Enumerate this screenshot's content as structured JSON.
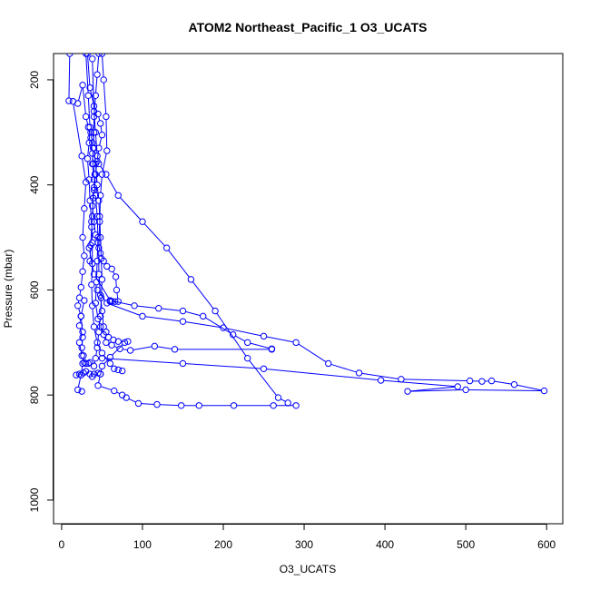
{
  "chart_data": {
    "type": "line",
    "title": "ATOM2 Northeast_Pacific_1 O3_UCATS",
    "xlabel": "O3_UCATS",
    "ylabel": "Pressure (mbar)",
    "xlim": [
      -10,
      620
    ],
    "ylim": [
      1045,
      150
    ],
    "y_reversed": true,
    "grid": false,
    "legend": "none",
    "x_ticks": [
      0,
      100,
      200,
      300,
      400,
      500,
      600
    ],
    "x_tick_labels": [
      "0",
      "100",
      "200",
      "300",
      "400",
      "500",
      "600"
    ],
    "y_ticks": [
      200,
      400,
      600,
      800,
      1000
    ],
    "y_tick_labels": [
      "200",
      "400",
      "600",
      "800",
      "1000"
    ],
    "series_color": "#0000ff",
    "series": [
      {
        "values": [
          [
            10,
            150
          ],
          [
            9,
            240
          ],
          [
            14,
            241
          ],
          [
            25,
            345
          ],
          [
            30,
            395
          ],
          [
            28,
            445
          ],
          [
            26,
            500
          ],
          [
            28,
            535
          ],
          [
            26,
            565
          ],
          [
            24,
            595
          ],
          [
            22,
            615
          ],
          [
            20,
            630
          ],
          [
            24,
            650
          ],
          [
            22,
            668
          ],
          [
            26,
            690
          ],
          [
            25,
            710
          ],
          [
            27,
            725
          ],
          [
            26,
            740
          ],
          [
            24,
            762
          ],
          [
            20,
            790
          ],
          [
            25,
            793
          ]
        ]
      },
      {
        "values": [
          [
            32,
            150
          ],
          [
            35,
            215
          ],
          [
            40,
            250
          ],
          [
            45,
            265
          ],
          [
            48,
            283
          ],
          [
            50,
            305
          ],
          [
            46,
            330
          ],
          [
            44,
            355
          ],
          [
            42,
            380
          ],
          [
            40,
            410
          ],
          [
            38,
            440
          ],
          [
            40,
            470
          ],
          [
            42,
            495
          ],
          [
            45,
            510
          ],
          [
            48,
            530
          ],
          [
            52,
            545
          ],
          [
            56,
            555
          ],
          [
            62,
            560
          ],
          [
            67,
            575
          ],
          [
            68,
            600
          ],
          [
            70,
            622
          ],
          [
            66,
            622
          ],
          [
            62,
            622
          ],
          [
            60,
            622
          ]
        ]
      },
      {
        "values": [
          [
            46,
            150
          ],
          [
            44,
            190
          ],
          [
            42,
            230
          ],
          [
            40,
            270
          ],
          [
            40,
            300
          ],
          [
            39,
            330
          ],
          [
            38,
            360
          ],
          [
            40,
            390
          ],
          [
            42,
            420
          ],
          [
            44,
            460
          ],
          [
            45,
            500
          ],
          [
            44,
            545
          ],
          [
            43,
            585
          ],
          [
            42,
            625
          ],
          [
            45,
            655
          ],
          [
            48,
            670
          ],
          [
            52,
            685
          ],
          [
            55,
            700
          ],
          [
            62,
            705
          ],
          [
            72,
            712
          ],
          [
            85,
            715
          ],
          [
            115,
            707
          ],
          [
            140,
            713
          ],
          [
            260,
            713
          ]
        ]
      },
      {
        "values": [
          [
            50,
            150
          ],
          [
            52,
            200
          ],
          [
            55,
            270
          ],
          [
            56,
            335
          ],
          [
            50,
            380
          ],
          [
            48,
            420
          ],
          [
            47,
            470
          ],
          [
            46,
            520
          ],
          [
            46,
            570
          ],
          [
            48,
            610
          ],
          [
            50,
            640
          ],
          [
            52,
            670
          ],
          [
            55,
            680
          ],
          [
            58,
            690
          ],
          [
            64,
            695
          ],
          [
            70,
            698
          ],
          [
            82,
            698
          ],
          [
            78,
            700
          ],
          [
            60,
            728
          ],
          [
            50,
            745
          ],
          [
            48,
            760
          ],
          [
            45,
            782
          ],
          [
            65,
            792
          ],
          [
            75,
            800
          ],
          [
            80,
            805
          ],
          [
            95,
            816
          ],
          [
            118,
            818
          ],
          [
            148,
            820
          ],
          [
            170,
            820
          ],
          [
            213,
            820
          ],
          [
            262,
            820
          ],
          [
            290,
            820
          ]
        ]
      },
      {
        "values": [
          [
            30,
            150
          ],
          [
            33,
            230
          ],
          [
            35,
            290
          ],
          [
            34,
            320
          ],
          [
            32,
            350
          ],
          [
            34,
            390
          ],
          [
            35,
            430
          ],
          [
            37,
            470
          ],
          [
            38,
            510
          ],
          [
            38,
            550
          ],
          [
            37,
            590
          ],
          [
            38,
            630
          ],
          [
            40,
            670
          ],
          [
            44,
            700
          ],
          [
            50,
            720
          ],
          [
            60,
            740
          ],
          [
            65,
            750
          ],
          [
            70,
            752
          ],
          [
            75,
            754
          ]
        ]
      },
      {
        "values": [
          [
            38,
            160
          ],
          [
            40,
            260
          ],
          [
            42,
            300
          ],
          [
            44,
            345
          ],
          [
            46,
            360
          ],
          [
            55,
            380
          ],
          [
            70,
            420
          ],
          [
            100,
            470
          ],
          [
            130,
            520
          ],
          [
            160,
            580
          ],
          [
            190,
            640
          ],
          [
            230,
            730
          ],
          [
            268,
            805
          ],
          [
            280,
            815
          ]
        ]
      },
      {
        "values": [
          [
            34,
            520
          ],
          [
            40,
            570
          ],
          [
            60,
            620
          ],
          [
            90,
            630
          ],
          [
            120,
            635
          ],
          [
            150,
            640
          ],
          [
            175,
            650
          ],
          [
            212,
            685
          ],
          [
            230,
            700
          ],
          [
            260,
            712
          ]
        ]
      },
      {
        "values": [
          [
            44,
            600
          ],
          [
            56,
            625
          ],
          [
            100,
            650
          ],
          [
            150,
            660
          ],
          [
            200,
            672
          ],
          [
            250,
            688
          ],
          [
            290,
            700
          ],
          [
            330,
            740
          ],
          [
            368,
            758
          ],
          [
            420,
            770
          ],
          [
            505,
            773
          ],
          [
            520,
            774
          ],
          [
            532,
            773
          ],
          [
            560,
            780
          ],
          [
            597,
            792
          ],
          [
            500,
            790
          ],
          [
            428,
            793
          ],
          [
            490,
            784
          ],
          [
            395,
            772
          ],
          [
            250,
            750
          ],
          [
            150,
            740
          ],
          [
            50,
            730
          ]
        ]
      },
      {
        "values": [
          [
            22,
            760
          ],
          [
            18,
            762
          ],
          [
            27,
            758
          ],
          [
            30,
            755
          ],
          [
            35,
            760
          ],
          [
            38,
            765
          ],
          [
            40,
            760
          ],
          [
            45,
            758
          ],
          [
            48,
            760
          ]
        ]
      },
      {
        "values": [
          [
            28,
            620
          ],
          [
            24,
            650
          ],
          [
            26,
            680
          ],
          [
            22,
            700
          ],
          [
            25,
            725
          ],
          [
            28,
            738
          ],
          [
            30,
            740
          ],
          [
            33,
            740
          ],
          [
            35,
            738
          ]
        ]
      },
      {
        "values": [
          [
            36,
            300
          ],
          [
            38,
            320
          ],
          [
            40,
            330
          ],
          [
            42,
            360
          ],
          [
            44,
            400
          ],
          [
            46,
            430
          ],
          [
            47,
            460
          ],
          [
            48,
            500
          ],
          [
            49,
            540
          ],
          [
            50,
            580
          ],
          [
            49,
            615
          ],
          [
            48,
            650
          ],
          [
            46,
            680
          ],
          [
            44,
            710
          ],
          [
            42,
            730
          ],
          [
            40,
            745
          ]
        ]
      },
      {
        "values": [
          [
            20,
            245
          ],
          [
            26,
            210
          ],
          [
            30,
            270
          ],
          [
            33,
            290
          ],
          [
            36,
            310
          ],
          [
            38,
            340
          ],
          [
            39,
            360
          ],
          [
            41,
            380
          ],
          [
            40,
            405
          ],
          [
            39,
            425
          ],
          [
            38,
            460
          ],
          [
            37,
            480
          ],
          [
            36,
            515
          ],
          [
            35,
            545
          ]
        ]
      }
    ]
  }
}
